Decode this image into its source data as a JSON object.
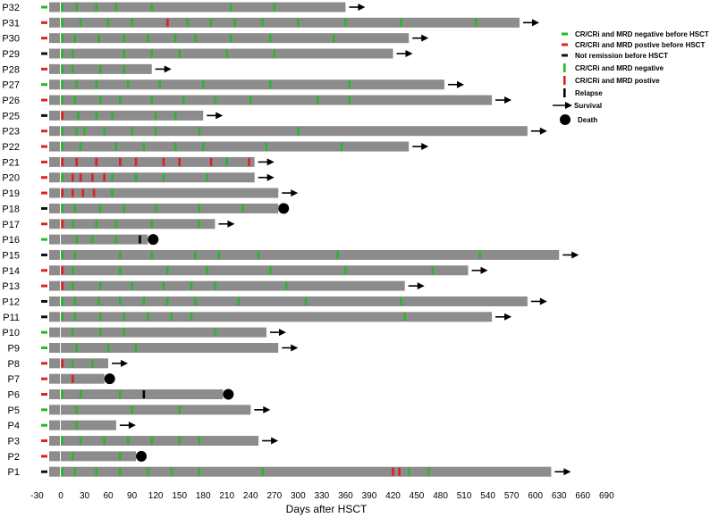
{
  "chart_data": {
    "type": "swimmer",
    "xlabel": "Days after HSCT",
    "xlim": [
      -30,
      690
    ],
    "xticks": [
      -30,
      0,
      30,
      60,
      90,
      120,
      150,
      180,
      210,
      240,
      270,
      300,
      330,
      360,
      390,
      420,
      450,
      480,
      510,
      540,
      570,
      600,
      630,
      660,
      690
    ],
    "pre_status_colors": {
      "neg": "#22bb22",
      "pos": "#e02020",
      "nr": "#111111"
    },
    "marker_colors": {
      "neg": "#22bb22",
      "pos": "#e02020",
      "relapse": "#000000"
    },
    "bar_color": "#8c8c8c",
    "legend": {
      "pre_neg": "CR/CRi and MRD negative before HSCT",
      "pre_pos": "CR/CRi and MRD postive before HSCT",
      "pre_nr": "Not remission before HSCT",
      "mark_neg": "CR/CRi and MRD negative",
      "mark_pos": "CR/CRi and MRD postive",
      "relapse": "Relapse",
      "survival": "Survival",
      "death": "Death"
    },
    "patients": [
      {
        "id": "P32",
        "pre": "neg",
        "end": 360,
        "outcome": "survival",
        "neg": [
          2,
          20,
          45,
          70,
          115,
          215,
          270
        ],
        "pos": [],
        "relapse": []
      },
      {
        "id": "P31",
        "pre": "pos",
        "end": 580,
        "outcome": "survival",
        "neg": [
          2,
          25,
          60,
          90,
          160,
          190,
          220,
          255,
          300,
          360,
          430,
          525
        ],
        "pos": [
          135
        ],
        "relapse": []
      },
      {
        "id": "P30",
        "pre": "pos",
        "end": 440,
        "outcome": "survival",
        "neg": [
          2,
          18,
          48,
          80,
          110,
          145,
          170,
          215,
          265,
          345
        ],
        "pos": [],
        "relapse": []
      },
      {
        "id": "P29",
        "pre": "nr",
        "end": 420,
        "outcome": "survival",
        "neg": [
          2,
          15,
          80,
          115,
          150,
          210,
          270
        ],
        "pos": [],
        "relapse": []
      },
      {
        "id": "P28",
        "pre": "pos",
        "end": 115,
        "outcome": "survival",
        "neg": [
          2,
          15,
          50,
          80
        ],
        "pos": [],
        "relapse": []
      },
      {
        "id": "P27",
        "pre": "neg",
        "end": 485,
        "outcome": "survival",
        "neg": [
          2,
          20,
          45,
          85,
          125,
          180,
          265,
          365
        ],
        "pos": [],
        "relapse": []
      },
      {
        "id": "P26",
        "pre": "pos",
        "end": 545,
        "outcome": "survival",
        "neg": [
          2,
          18,
          50,
          75,
          115,
          155,
          195,
          240,
          325,
          365
        ],
        "pos": [],
        "relapse": []
      },
      {
        "id": "P25",
        "pre": "nr",
        "end": 180,
        "outcome": "survival",
        "neg": [
          22,
          45,
          65,
          120,
          145
        ],
        "pos": [
          2
        ],
        "relapse": []
      },
      {
        "id": "P23",
        "pre": "pos",
        "end": 590,
        "outcome": "survival",
        "neg": [
          2,
          20,
          30,
          55,
          90,
          120,
          175,
          300
        ],
        "pos": [],
        "relapse": []
      },
      {
        "id": "P22",
        "pre": "pos",
        "end": 440,
        "outcome": "survival",
        "neg": [
          2,
          25,
          70,
          105,
          145,
          180,
          260,
          355
        ],
        "pos": [],
        "relapse": []
      },
      {
        "id": "P21",
        "pre": "pos",
        "end": 245,
        "outcome": "survival",
        "neg": [
          210
        ],
        "pos": [
          2,
          20,
          45,
          75,
          95,
          130,
          150,
          190,
          238
        ],
        "relapse": []
      },
      {
        "id": "P20",
        "pre": "pos",
        "end": 245,
        "outcome": "survival",
        "neg": [
          2,
          65,
          95,
          130,
          185
        ],
        "pos": [
          15,
          25,
          40,
          55
        ],
        "relapse": []
      },
      {
        "id": "P19",
        "pre": "pos",
        "end": 275,
        "outcome": "survival",
        "neg": [
          65
        ],
        "pos": [
          2,
          15,
          28,
          42
        ],
        "relapse": []
      },
      {
        "id": "P18",
        "pre": "nr",
        "end": 275,
        "outcome": "death",
        "neg": [
          2,
          18,
          50,
          80,
          120,
          175,
          230
        ],
        "pos": [],
        "relapse": []
      },
      {
        "id": "P17",
        "pre": "pos",
        "end": 195,
        "outcome": "survival",
        "neg": [
          15,
          45,
          70,
          115,
          175
        ],
        "pos": [
          2
        ],
        "relapse": []
      },
      {
        "id": "P16",
        "pre": "neg",
        "end": 110,
        "outcome": "death",
        "neg": [
          20,
          40,
          70
        ],
        "pos": [],
        "relapse": [
          100
        ]
      },
      {
        "id": "P15",
        "pre": "nr",
        "end": 630,
        "outcome": "survival",
        "neg": [
          2,
          18,
          75,
          115,
          170,
          200,
          250,
          350,
          530
        ],
        "pos": [],
        "relapse": []
      },
      {
        "id": "P14",
        "pre": "pos",
        "end": 515,
        "outcome": "survival",
        "neg": [
          15,
          75,
          135,
          185,
          265,
          360,
          470
        ],
        "pos": [
          2
        ],
        "relapse": []
      },
      {
        "id": "P13",
        "pre": "pos",
        "end": 435,
        "outcome": "survival",
        "neg": [
          15,
          50,
          90,
          130,
          165,
          195,
          285
        ],
        "pos": [
          2
        ],
        "relapse": []
      },
      {
        "id": "P12",
        "pre": "nr",
        "end": 590,
        "outcome": "survival",
        "neg": [
          2,
          18,
          48,
          75,
          105,
          135,
          170,
          225,
          310,
          430
        ],
        "pos": [],
        "relapse": []
      },
      {
        "id": "P11",
        "pre": "nr",
        "end": 545,
        "outcome": "survival",
        "neg": [
          2,
          18,
          50,
          80,
          110,
          140,
          165,
          435
        ],
        "pos": [],
        "relapse": []
      },
      {
        "id": "P10",
        "pre": "neg",
        "end": 260,
        "outcome": "survival",
        "neg": [
          15,
          50,
          80,
          195
        ],
        "pos": [],
        "relapse": []
      },
      {
        "id": "P9",
        "pre": "neg",
        "end": 275,
        "outcome": "survival",
        "neg": [
          20,
          60,
          95
        ],
        "pos": [],
        "relapse": []
      },
      {
        "id": "P8",
        "pre": "pos",
        "end": 60,
        "outcome": "survival",
        "neg": [
          15,
          40
        ],
        "pos": [
          2
        ],
        "relapse": []
      },
      {
        "id": "P7",
        "pre": "pos",
        "end": 55,
        "outcome": "death",
        "neg": [],
        "pos": [
          15
        ],
        "relapse": []
      },
      {
        "id": "P6",
        "pre": "pos",
        "end": 205,
        "outcome": "death",
        "neg": [
          2,
          25,
          75
        ],
        "pos": [],
        "relapse": [
          105
        ]
      },
      {
        "id": "P5",
        "pre": "neg",
        "end": 240,
        "outcome": "survival",
        "neg": [
          20,
          90,
          150
        ],
        "pos": [],
        "relapse": []
      },
      {
        "id": "P4",
        "pre": "neg",
        "end": 70,
        "outcome": "survival",
        "neg": [
          20
        ],
        "pos": [],
        "relapse": []
      },
      {
        "id": "P3",
        "pre": "pos",
        "end": 250,
        "outcome": "survival",
        "neg": [
          2,
          25,
          55,
          85,
          115,
          150,
          175
        ],
        "pos": [],
        "relapse": []
      },
      {
        "id": "P2",
        "pre": "pos",
        "end": 95,
        "outcome": "death",
        "neg": [
          15,
          75
        ],
        "pos": [],
        "relapse": []
      },
      {
        "id": "P1",
        "pre": "nr",
        "end": 620,
        "outcome": "survival",
        "neg": [
          2,
          18,
          45,
          75,
          110,
          140,
          175,
          255,
          440,
          465
        ],
        "pos": [],
        "relapse": [],
        "pos_extra": [
          420,
          428
        ]
      }
    ]
  }
}
